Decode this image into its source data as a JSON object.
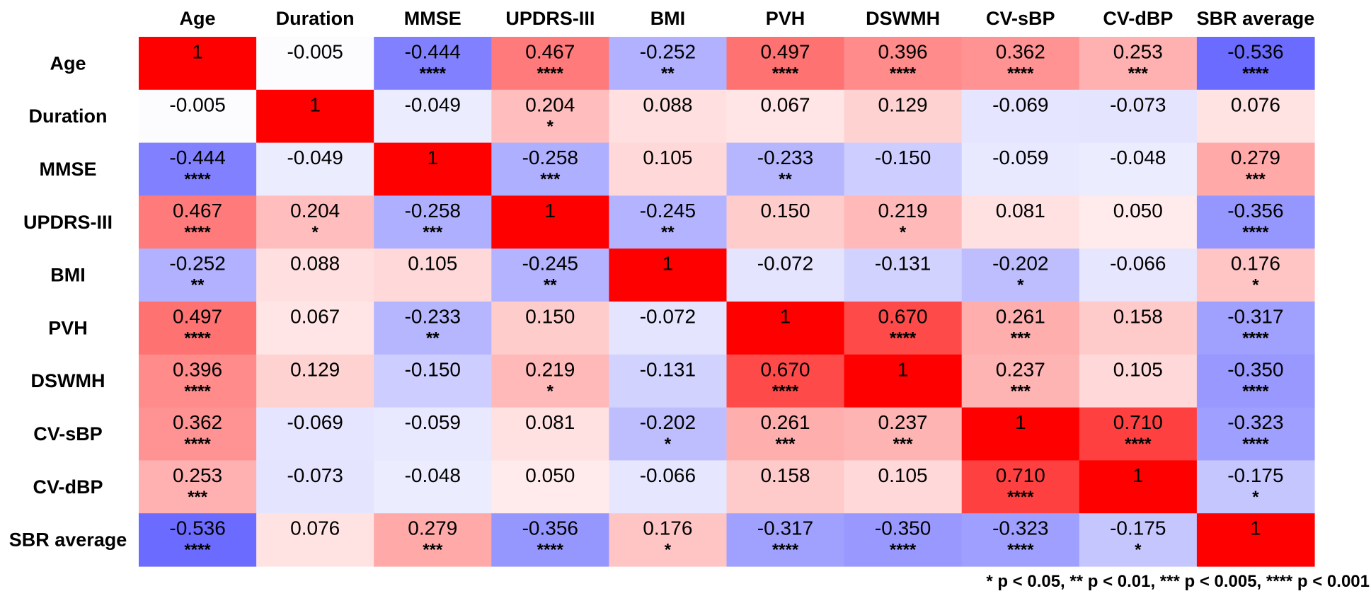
{
  "chart_data": {
    "type": "heatmap",
    "title": "",
    "variables": [
      "Age",
      "Duration",
      "MMSE",
      "UPDRS-III",
      "BMI",
      "PVH",
      "DSWMH",
      "CV-sBP",
      "CV-dBP",
      "SBR average"
    ],
    "values": [
      [
        "1",
        "-0.005",
        "-0.444",
        "0.467",
        "-0.252",
        "0.497",
        "0.396",
        "0.362",
        "0.253",
        "-0.536"
      ],
      [
        "-0.005",
        "1",
        "-0.049",
        "0.204",
        "0.088",
        "0.067",
        "0.129",
        "-0.069",
        "-0.073",
        "0.076"
      ],
      [
        "-0.444",
        "-0.049",
        "1",
        "-0.258",
        "0.105",
        "-0.233",
        "-0.150",
        "-0.059",
        "-0.048",
        "0.279"
      ],
      [
        "0.467",
        "0.204",
        "-0.258",
        "1",
        "-0.245",
        "0.150",
        "0.219",
        "0.081",
        "0.050",
        "-0.356"
      ],
      [
        "-0.252",
        "0.088",
        "0.105",
        "-0.245",
        "1",
        "-0.072",
        "-0.131",
        "-0.202",
        "-0.066",
        "0.176"
      ],
      [
        "0.497",
        "0.067",
        "-0.233",
        "0.150",
        "-0.072",
        "1",
        "0.670",
        "0.261",
        "0.158",
        "-0.317"
      ],
      [
        "0.396",
        "0.129",
        "-0.150",
        "0.219",
        "-0.131",
        "0.670",
        "1",
        "0.237",
        "0.105",
        "-0.350"
      ],
      [
        "0.362",
        "-0.069",
        "-0.059",
        "0.081",
        "-0.202",
        "0.261",
        "0.237",
        "1",
        "0.710",
        "-0.323"
      ],
      [
        "0.253",
        "-0.073",
        "-0.048",
        "0.050",
        "-0.066",
        "0.158",
        "0.105",
        "0.710",
        "1",
        "-0.175"
      ],
      [
        "-0.536",
        "0.076",
        "0.279",
        "-0.356",
        "0.176",
        "-0.317",
        "-0.350",
        "-0.323",
        "-0.175",
        "1"
      ]
    ],
    "significance": [
      [
        "",
        "",
        "****",
        "****",
        "**",
        "****",
        "****",
        "****",
        "***",
        "****"
      ],
      [
        "",
        "",
        "",
        "*",
        "",
        "",
        "",
        "",
        "",
        ""
      ],
      [
        "****",
        "",
        "",
        "***",
        "",
        "**",
        "",
        "",
        "",
        "***"
      ],
      [
        "****",
        "*",
        "***",
        "",
        "**",
        "",
        "*",
        "",
        "",
        "****"
      ],
      [
        "**",
        "",
        "",
        "**",
        "",
        "",
        "",
        "*",
        "",
        "*"
      ],
      [
        "****",
        "",
        "**",
        "",
        "",
        "",
        "****",
        "***",
        "",
        "****"
      ],
      [
        "****",
        "",
        "",
        "*",
        "",
        "****",
        "",
        "***",
        "",
        "****"
      ],
      [
        "****",
        "",
        "",
        "",
        "*",
        "***",
        "***",
        "",
        "****",
        "****"
      ],
      [
        "***",
        "",
        "",
        "",
        "",
        "",
        "",
        "****",
        "",
        "*"
      ],
      [
        "****",
        "",
        "***",
        "****",
        "*",
        "****",
        "****",
        "****",
        "*",
        ""
      ]
    ],
    "color_scale": {
      "negative": "#5c5cff",
      "zero": "#ffffff",
      "positive": "#ff0000",
      "range": [
        -0.6,
        1
      ]
    },
    "footnote": "* p < 0.05, ** p < 0.01, *** p < 0.005, **** p < 0.001"
  }
}
